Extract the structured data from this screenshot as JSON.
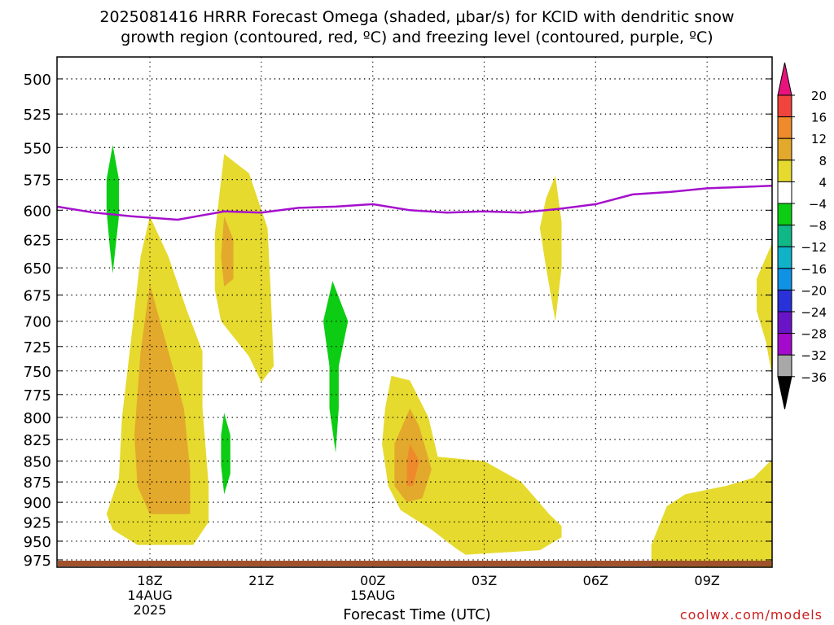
{
  "title": {
    "line1": "2025081416 HRRR Forecast Omega (shaded, μbar/s) for KCID with dendritic snow",
    "line2": "growth region (contoured, red, ºC) and freezing level (contoured, purple, ºC)"
  },
  "watermark": "coolwx.com/models",
  "chart_data": {
    "type": "contour",
    "title": "2025081416 HRRR Forecast Omega (shaded, μbar/s) for KCID with dendritic snow growth region (contoured, red, ºC) and freezing level (contoured, purple, ºC)",
    "xlabel": "Forecast Time (UTC)",
    "ylabel": "",
    "y_scale": "log pressure (hPa), inverted",
    "ylim": [
      985,
      485
    ],
    "x_range_utc": [
      "2025-08-14 15:30",
      "2025-08-15 10:45"
    ],
    "y_ticks": [
      500,
      525,
      550,
      575,
      600,
      625,
      650,
      675,
      700,
      725,
      750,
      775,
      800,
      825,
      850,
      875,
      900,
      925,
      950,
      975
    ],
    "x_ticks": [
      {
        "time": "2025-08-14 18:00",
        "lines": [
          "18Z",
          "14AUG",
          "2025"
        ]
      },
      {
        "time": "2025-08-14 21:00",
        "lines": [
          "21Z"
        ]
      },
      {
        "time": "2025-08-15 00:00",
        "lines": [
          "00Z",
          "15AUG"
        ]
      },
      {
        "time": "2025-08-15 03:00",
        "lines": [
          "03Z"
        ]
      },
      {
        "time": "2025-08-15 06:00",
        "lines": [
          "06Z"
        ]
      },
      {
        "time": "2025-08-15 09:00",
        "lines": [
          "09Z"
        ]
      }
    ],
    "grid": true,
    "colorbar": {
      "position": "right",
      "units": "μbar/s",
      "levels": [
        20,
        16,
        12,
        8,
        4,
        -4,
        -8,
        -12,
        -16,
        -20,
        -24,
        -28,
        -32,
        -36
      ],
      "colors": [
        "#e8127d",
        "#f0443c",
        "#ee8a2c",
        "#e3a92c",
        "#e6da2e",
        "#ffffff",
        "#0ccd13",
        "#10b888",
        "#10b2c8",
        "#1092e4",
        "#2832d8",
        "#6a14c8",
        "#a40acc",
        "#a8a8a8",
        "#000000"
      ]
    },
    "freezing_level": {
      "color": "#a510cc",
      "points": [
        [
          "2025-08-14 15:30",
          597
        ],
        [
          "2025-08-14 16:30",
          602
        ],
        [
          "2025-08-14 17:30",
          605
        ],
        [
          "2025-08-14 18:45",
          608
        ],
        [
          "2025-08-14 20:00",
          601
        ],
        [
          "2025-08-14 21:00",
          602
        ],
        [
          "2025-08-14 22:00",
          598
        ],
        [
          "2025-08-14 23:00",
          597
        ],
        [
          "2025-08-15 00:00",
          595
        ],
        [
          "2025-08-15 01:00",
          600
        ],
        [
          "2025-08-15 02:00",
          602
        ],
        [
          "2025-08-15 03:00",
          601
        ],
        [
          "2025-08-15 04:00",
          602
        ],
        [
          "2025-08-15 05:00",
          599
        ],
        [
          "2025-08-15 06:00",
          595
        ],
        [
          "2025-08-15 07:00",
          587
        ],
        [
          "2025-08-15 08:00",
          585
        ],
        [
          "2025-08-15 09:00",
          582
        ],
        [
          "2025-08-15 10:45",
          580
        ]
      ]
    },
    "omega_regions": [
      {
        "level": "4 to 8",
        "color": "#e6da2e",
        "points": [
          [
            "2025-08-14 18:00",
            605
          ],
          [
            "2025-08-14 18:30",
            640
          ],
          [
            "2025-08-14 19:00",
            690
          ],
          [
            "2025-08-14 19:25",
            730
          ],
          [
            "2025-08-14 19:25",
            790
          ],
          [
            "2025-08-14 19:35",
            880
          ],
          [
            "2025-08-14 19:35",
            925
          ],
          [
            "2025-08-14 19:10",
            955
          ],
          [
            "2025-08-14 17:40",
            955
          ],
          [
            "2025-08-14 17:00",
            935
          ],
          [
            "2025-08-14 16:50",
            915
          ],
          [
            "2025-08-14 17:10",
            870
          ],
          [
            "2025-08-14 17:15",
            800
          ],
          [
            "2025-08-14 17:35",
            690
          ],
          [
            "2025-08-14 17:45",
            640
          ]
        ]
      },
      {
        "level": "8 to 12",
        "color": "#e3a92c",
        "points": [
          [
            "2025-08-14 18:00",
            665
          ],
          [
            "2025-08-14 18:30",
            730
          ],
          [
            "2025-08-14 18:55",
            790
          ],
          [
            "2025-08-14 19:05",
            860
          ],
          [
            "2025-08-14 19:05",
            915
          ],
          [
            "2025-08-14 18:00",
            915
          ],
          [
            "2025-08-14 17:40",
            880
          ],
          [
            "2025-08-14 17:35",
            820
          ],
          [
            "2025-08-14 17:45",
            730
          ]
        ]
      },
      {
        "level": "4 to 8",
        "color": "#e6da2e",
        "points": [
          [
            "2025-08-14 20:00",
            555
          ],
          [
            "2025-08-14 20:40",
            570
          ],
          [
            "2025-08-14 21:10",
            615
          ],
          [
            "2025-08-14 21:15",
            670
          ],
          [
            "2025-08-14 21:20",
            745
          ],
          [
            "2025-08-14 21:00",
            762
          ],
          [
            "2025-08-14 20:40",
            735
          ],
          [
            "2025-08-14 19:55",
            700
          ],
          [
            "2025-08-14 19:45",
            670
          ],
          [
            "2025-08-14 19:45",
            620
          ]
        ]
      },
      {
        "level": "8 to 12",
        "color": "#e3a92c",
        "points": [
          [
            "2025-08-14 20:00",
            605
          ],
          [
            "2025-08-14 20:15",
            625
          ],
          [
            "2025-08-14 20:15",
            660
          ],
          [
            "2025-08-14 20:00",
            667
          ],
          [
            "2025-08-14 19:55",
            640
          ]
        ]
      },
      {
        "level": "4 to 8",
        "color": "#e6da2e",
        "points": [
          [
            "2025-08-15 00:30",
            755
          ],
          [
            "2025-08-15 01:00",
            760
          ],
          [
            "2025-08-15 01:30",
            800
          ],
          [
            "2025-08-15 01:45",
            845
          ],
          [
            "2025-08-15 02:30",
            848
          ],
          [
            "2025-08-15 03:00",
            850
          ],
          [
            "2025-08-15 04:00",
            875
          ],
          [
            "2025-08-15 04:45",
            915
          ],
          [
            "2025-08-15 05:05",
            930
          ],
          [
            "2025-08-15 05:05",
            945
          ],
          [
            "2025-08-15 04:30",
            962
          ],
          [
            "2025-08-15 02:30",
            968
          ],
          [
            "2025-08-15 02:15",
            960
          ],
          [
            "2025-08-15 01:35",
            935
          ],
          [
            "2025-08-15 00:45",
            910
          ],
          [
            "2025-08-15 00:25",
            880
          ],
          [
            "2025-08-15 00:15",
            830
          ],
          [
            "2025-08-15 00:20",
            790
          ]
        ]
      },
      {
        "level": "8 to 12",
        "color": "#e3a92c",
        "points": [
          [
            "2025-08-15 01:00",
            790
          ],
          [
            "2025-08-15 01:15",
            810
          ],
          [
            "2025-08-15 01:35",
            860
          ],
          [
            "2025-08-15 01:20",
            895
          ],
          [
            "2025-08-15 00:55",
            900
          ],
          [
            "2025-08-15 00:35",
            880
          ],
          [
            "2025-08-15 00:35",
            830
          ]
        ]
      },
      {
        "level": "12 to 16",
        "color": "#ee8a2c",
        "points": [
          [
            "2025-08-15 01:00",
            830
          ],
          [
            "2025-08-15 01:15",
            850
          ],
          [
            "2025-08-15 01:05",
            880
          ],
          [
            "2025-08-15 00:55",
            880
          ],
          [
            "2025-08-15 00:55",
            850
          ]
        ]
      },
      {
        "level": "4 to 8",
        "color": "#e6da2e",
        "points": [
          [
            "2025-08-15 04:55",
            572
          ],
          [
            "2025-08-15 05:05",
            610
          ],
          [
            "2025-08-15 05:05",
            650
          ],
          [
            "2025-08-15 04:55",
            700
          ],
          [
            "2025-08-15 04:40",
            650
          ],
          [
            "2025-08-15 04:30",
            615
          ],
          [
            "2025-08-15 04:40",
            590
          ]
        ]
      },
      {
        "level": "4 to 8",
        "color": "#e6da2e",
        "points": [
          [
            "2025-08-15 10:45",
            628
          ],
          [
            "2025-08-15 10:45",
            755
          ],
          [
            "2025-08-15 10:35",
            720
          ],
          [
            "2025-08-15 10:20",
            690
          ],
          [
            "2025-08-15 10:20",
            660
          ]
        ]
      },
      {
        "level": "4 to 8",
        "color": "#e6da2e",
        "points": [
          [
            "2025-08-15 10:45",
            848
          ],
          [
            "2025-08-15 10:45",
            985
          ],
          [
            "2025-08-15 07:30",
            985
          ],
          [
            "2025-08-15 07:30",
            955
          ],
          [
            "2025-08-15 07:55",
            905
          ],
          [
            "2025-08-15 08:25",
            890
          ],
          [
            "2025-08-15 09:30",
            880
          ],
          [
            "2025-08-15 10:15",
            870
          ]
        ]
      },
      {
        "level": "-8 to -4",
        "color": "#0ccd13",
        "points": [
          [
            "2025-08-14 17:00",
            548
          ],
          [
            "2025-08-14 17:10",
            575
          ],
          [
            "2025-08-14 17:10",
            605
          ],
          [
            "2025-08-14 17:00",
            655
          ],
          [
            "2025-08-14 16:55",
            630
          ],
          [
            "2025-08-14 16:50",
            600
          ],
          [
            "2025-08-14 16:50",
            575
          ]
        ]
      },
      {
        "level": "-8 to -4",
        "color": "#0ccd13",
        "points": [
          [
            "2025-08-14 20:00",
            795
          ],
          [
            "2025-08-14 20:10",
            820
          ],
          [
            "2025-08-14 20:10",
            865
          ],
          [
            "2025-08-14 20:00",
            890
          ],
          [
            "2025-08-14 19:55",
            855
          ],
          [
            "2025-08-14 19:55",
            820
          ]
        ]
      },
      {
        "level": "-8 to -4",
        "color": "#0ccd13",
        "points": [
          [
            "2025-08-14 22:55",
            662
          ],
          [
            "2025-08-14 23:20",
            700
          ],
          [
            "2025-08-14 23:05",
            745
          ],
          [
            "2025-08-14 23:05",
            790
          ],
          [
            "2025-08-14 23:00",
            840
          ],
          [
            "2025-08-14 22:50",
            790
          ],
          [
            "2025-08-14 22:50",
            745
          ],
          [
            "2025-08-14 22:40",
            700
          ]
        ]
      }
    ]
  }
}
